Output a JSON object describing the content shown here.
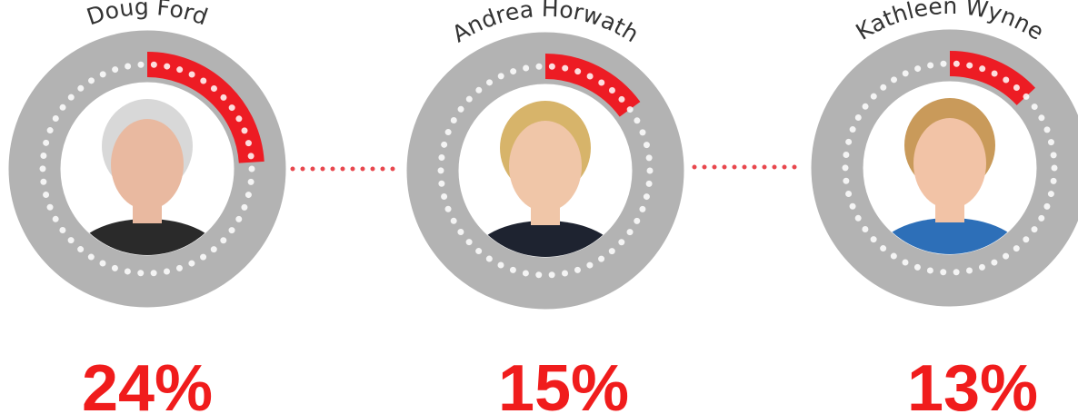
{
  "chart_data": {
    "type": "gauge",
    "categories": [
      "Doug Ford",
      "Andrea Horwath",
      "Kathleen Wynne"
    ],
    "values": [
      24,
      15,
      13
    ],
    "value_labels": [
      "24%",
      "15%",
      "13%"
    ],
    "color": "#ed1c24",
    "track_color": "#b3b3b3",
    "ylim": [
      0,
      100
    ]
  }
}
